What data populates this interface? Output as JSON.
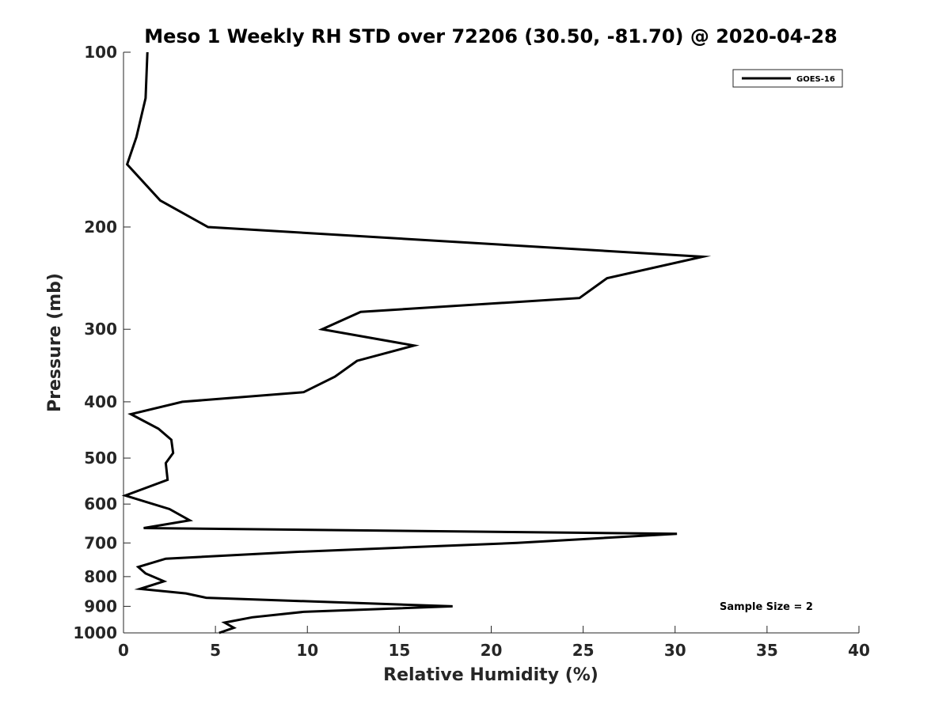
{
  "chart_data": {
    "type": "line",
    "title": "Meso 1 Weekly RH STD over 72206 (30.50, -81.70) @ 2020-04-28",
    "xlabel": "Relative Humidity (%)",
    "ylabel": "Pressure (mb)",
    "xlim": [
      0,
      40
    ],
    "ylim": [
      100,
      1000
    ],
    "y_scale": "log",
    "y_reversed": true,
    "xticks": [
      0,
      5,
      10,
      15,
      20,
      25,
      30,
      35,
      40
    ],
    "yticks": [
      100,
      200,
      300,
      400,
      500,
      600,
      700,
      800,
      900,
      1000
    ],
    "grid": false,
    "legend_position": "top-right",
    "line_color": "#000000",
    "series": [
      {
        "name": "GOES-16",
        "x": [
          1.3,
          1.2,
          0.7,
          0.2,
          2.0,
          4.6,
          31.5,
          26.3,
          24.8,
          12.9,
          10.8,
          15.8,
          12.7,
          11.5,
          9.8,
          3.2,
          0.4,
          1.9,
          2.6,
          2.7,
          2.3,
          2.4,
          0.1,
          2.5,
          3.6,
          1.1,
          30.1,
          21.4,
          9.5,
          2.3,
          0.8,
          1.2,
          2.2,
          0.9,
          3.4,
          4.5,
          17.9,
          9.8,
          7.0,
          5.5,
          6.0,
          5.2
        ],
        "y": [
          100,
          120,
          140,
          156,
          180,
          200,
          225,
          245,
          265,
          280,
          300,
          320,
          340,
          362,
          385,
          400,
          420,
          445,
          465,
          490,
          510,
          545,
          580,
          612,
          640,
          660,
          675,
          700,
          725,
          745,
          770,
          790,
          815,
          840,
          855,
          870,
          900,
          920,
          940,
          960,
          980,
          1000
        ]
      }
    ],
    "annotations": [
      "Sample Size = 2"
    ]
  }
}
